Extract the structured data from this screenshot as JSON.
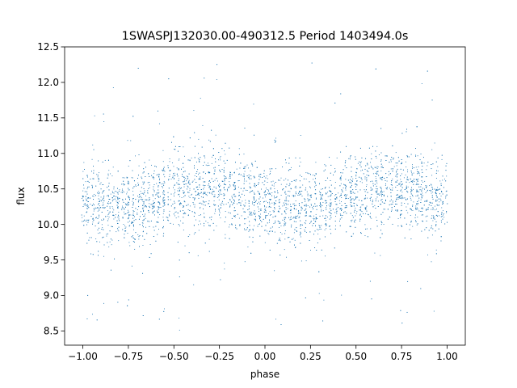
{
  "chart_data": {
    "type": "scatter",
    "title": "1SWASPJ132030.00-490312.5 Period 1403494.0s",
    "xlabel": "phase",
    "ylabel": "flux",
    "xlim": [
      -1.1,
      1.1
    ],
    "ylim": [
      8.3,
      12.5
    ],
    "xticks": [
      -1.0,
      -0.75,
      -0.5,
      -0.25,
      0.0,
      0.25,
      0.5,
      0.75,
      1.0
    ],
    "xtick_labels": [
      "−1.00",
      "−0.75",
      "−0.50",
      "−0.25",
      "0.00",
      "0.25",
      "0.50",
      "0.75",
      "1.00"
    ],
    "yticks": [
      8.5,
      9.0,
      9.5,
      10.0,
      10.5,
      11.0,
      11.5,
      12.0,
      12.5
    ],
    "ytick_labels": [
      "8.5",
      "9.0",
      "9.5",
      "10.0",
      "10.5",
      "11.0",
      "11.5",
      "12.0",
      "12.5"
    ],
    "grid": false,
    "marker_color": "#1f77b4",
    "series": [
      {
        "phase_range": [
          -1.0,
          1.0
        ],
        "typical_flux_band": [
          9.8,
          10.9
        ],
        "flux_range": [
          8.5,
          12.3
        ],
        "trend": [
          {
            "phase": -1.0,
            "flux": 10.3
          },
          {
            "phase": -0.75,
            "flux": 10.2
          },
          {
            "phase": -0.5,
            "flux": 10.45
          },
          {
            "phase": -0.25,
            "flux": 10.5
          },
          {
            "phase": 0.0,
            "flux": 10.3
          },
          {
            "phase": 0.25,
            "flux": 10.2
          },
          {
            "phase": 0.5,
            "flux": 10.45
          },
          {
            "phase": 0.75,
            "flux": 10.5
          },
          {
            "phase": 1.0,
            "flux": 10.3
          }
        ]
      }
    ]
  }
}
